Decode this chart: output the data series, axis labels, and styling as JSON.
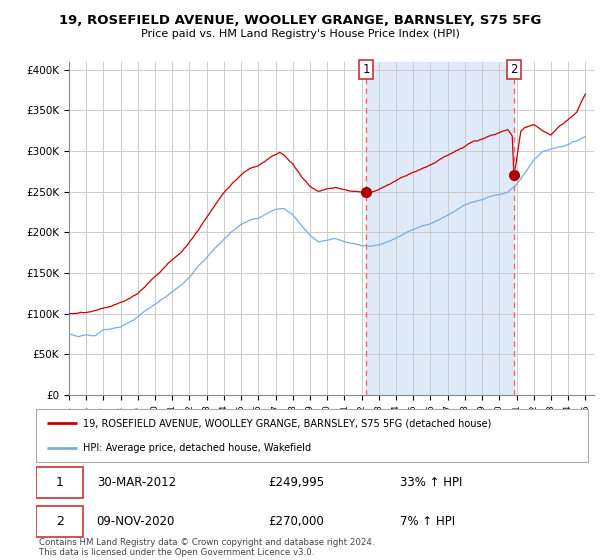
{
  "title": "19, ROSEFIELD AVENUE, WOOLLEY GRANGE, BARNSLEY, S75 5FG",
  "subtitle": "Price paid vs. HM Land Registry's House Price Index (HPI)",
  "ylim": [
    0,
    410000
  ],
  "yticks": [
    0,
    50000,
    100000,
    150000,
    200000,
    250000,
    300000,
    350000,
    400000
  ],
  "ytick_labels": [
    "£0",
    "£50K",
    "£100K",
    "£150K",
    "£200K",
    "£250K",
    "£300K",
    "£350K",
    "£400K"
  ],
  "x_start_year": 1995,
  "x_end_year": 2025,
  "transaction1_date": "30-MAR-2012",
  "transaction1_price": 249995,
  "transaction1_hpi_pct": "33% ↑ HPI",
  "transaction1_x": 2012.25,
  "transaction2_date": "09-NOV-2020",
  "transaction2_price": 270000,
  "transaction2_hpi_pct": "7% ↑ HPI",
  "transaction2_x": 2020.85,
  "red_line_color": "#cc0000",
  "blue_line_color": "#7aade0",
  "shade_color": "#deeaf7",
  "dashed_line_color": "#ff6666",
  "marker_color": "#aa0000",
  "legend_label_red": "19, ROSEFIELD AVENUE, WOOLLEY GRANGE, BARNSLEY, S75 5FG (detached house)",
  "legend_label_blue": "HPI: Average price, detached house, Wakefield",
  "footnote": "Contains HM Land Registry data © Crown copyright and database right 2024.\nThis data is licensed under the Open Government Licence v3.0.",
  "background_color": "#ffffff",
  "grid_color": "#cccccc",
  "label1": "1",
  "label2": "2"
}
